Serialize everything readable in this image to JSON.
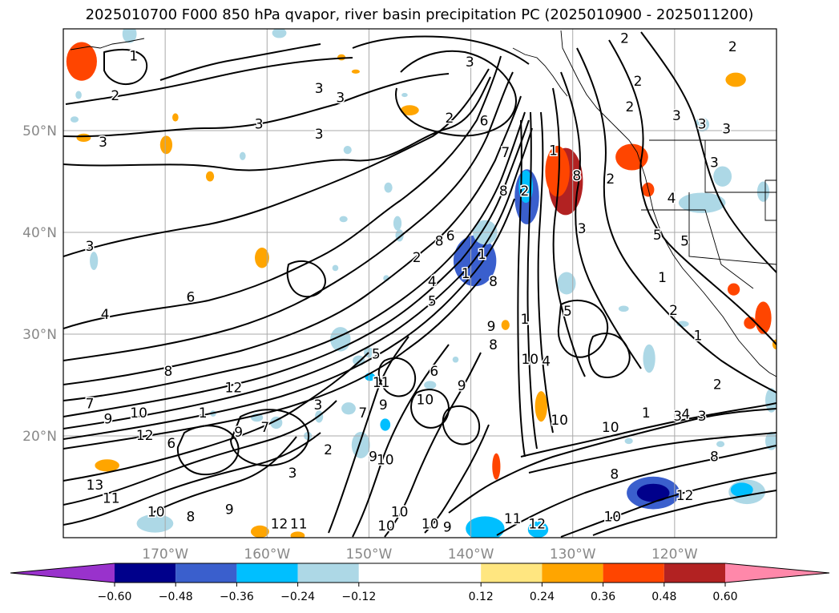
{
  "title": "2025010700 F000 850 hPa qvapor, river basin precipitation PC (2025010900 - 2025011200)",
  "chart_data": {
    "type": "heatmap",
    "title": "2025010700 F000 850 hPa qvapor, river basin precipitation PC (2025010900 - 2025011200)",
    "xlabel": "",
    "ylabel": "",
    "xlim": [
      -180,
      -110
    ],
    "ylim": [
      10,
      60
    ],
    "grid": true,
    "x_ticks": [
      {
        "value": -170,
        "label": "170°W"
      },
      {
        "value": -160,
        "label": "160°W"
      },
      {
        "value": -150,
        "label": "150°W"
      },
      {
        "value": -140,
        "label": "140°W"
      },
      {
        "value": -130,
        "label": "130°W"
      },
      {
        "value": -120,
        "label": "120°W"
      }
    ],
    "y_ticks": [
      {
        "value": 20,
        "label": "20°N"
      },
      {
        "value": 30,
        "label": "30°N"
      },
      {
        "value": 40,
        "label": "40°N"
      },
      {
        "value": 50,
        "label": "50°N"
      }
    ],
    "colorbar": {
      "orientation": "horizontal",
      "extend": "both",
      "bounds": [
        -0.72,
        -0.6,
        -0.48,
        -0.36,
        -0.24,
        -0.12,
        0.12,
        0.24,
        0.36,
        0.48,
        0.6,
        0.72
      ],
      "tick_labels": [
        "−0.60",
        "−0.48",
        "−0.36",
        "−0.24",
        "−0.12",
        "0.12",
        "0.24",
        "0.36",
        "0.48",
        "0.60"
      ],
      "colors": [
        "#9932cc",
        "#00008b",
        "#3a5fcd",
        "#00bfff",
        "#add8e6",
        "#ffffff",
        "#ffe680",
        "#ffa500",
        "#ff4500",
        "#b22222",
        "#ff88aa"
      ]
    },
    "contour_labels": [
      {
        "lon": -173.1,
        "lat": 57.3,
        "text": "1"
      },
      {
        "lon": -174.9,
        "lat": 53.4,
        "text": "2"
      },
      {
        "lon": -176.1,
        "lat": 48.8,
        "text": "3"
      },
      {
        "lon": -160.8,
        "lat": 50.6,
        "text": "3"
      },
      {
        "lon": -154.9,
        "lat": 54.1,
        "text": "3"
      },
      {
        "lon": -152.8,
        "lat": 53.2,
        "text": "3"
      },
      {
        "lon": -154.9,
        "lat": 49.6,
        "text": "3"
      },
      {
        "lon": -177.4,
        "lat": 38.6,
        "text": "3"
      },
      {
        "lon": -140.1,
        "lat": 56.7,
        "text": "3"
      },
      {
        "lon": -142.1,
        "lat": 51.2,
        "text": "2"
      },
      {
        "lon": -138.7,
        "lat": 50.9,
        "text": "6"
      },
      {
        "lon": -136.6,
        "lat": 47.8,
        "text": "7"
      },
      {
        "lon": -136.8,
        "lat": 44.0,
        "text": "8"
      },
      {
        "lon": -134.7,
        "lat": 44.0,
        "text": "2"
      },
      {
        "lon": -131.9,
        "lat": 48.0,
        "text": "1"
      },
      {
        "lon": -129.6,
        "lat": 45.5,
        "text": "8"
      },
      {
        "lon": -124.4,
        "lat": 52.3,
        "text": "2"
      },
      {
        "lon": -124.9,
        "lat": 59.0,
        "text": "2"
      },
      {
        "lon": -123.6,
        "lat": 54.8,
        "text": "2"
      },
      {
        "lon": -114.3,
        "lat": 58.2,
        "text": "2"
      },
      {
        "lon": -119.8,
        "lat": 51.4,
        "text": "3"
      },
      {
        "lon": -117.3,
        "lat": 50.6,
        "text": "3"
      },
      {
        "lon": -114.9,
        "lat": 50.1,
        "text": "3"
      },
      {
        "lon": -116.1,
        "lat": 46.8,
        "text": "3"
      },
      {
        "lon": -126.3,
        "lat": 45.2,
        "text": "2"
      },
      {
        "lon": -120.3,
        "lat": 43.3,
        "text": "4"
      },
      {
        "lon": -121.7,
        "lat": 39.7,
        "text": "5"
      },
      {
        "lon": -119.0,
        "lat": 39.1,
        "text": "5"
      },
      {
        "lon": -121.2,
        "lat": 35.5,
        "text": "1"
      },
      {
        "lon": -120.1,
        "lat": 32.3,
        "text": "2"
      },
      {
        "lon": -117.7,
        "lat": 29.8,
        "text": "1"
      },
      {
        "lon": -115.8,
        "lat": 25.0,
        "text": "2"
      },
      {
        "lon": -119.7,
        "lat": 21.9,
        "text": "3"
      },
      {
        "lon": -117.3,
        "lat": 21.9,
        "text": "3"
      },
      {
        "lon": -118.9,
        "lat": 22.1,
        "text": "4"
      },
      {
        "lon": -122.8,
        "lat": 22.2,
        "text": "1"
      },
      {
        "lon": -126.3,
        "lat": 20.8,
        "text": "10"
      },
      {
        "lon": -125.9,
        "lat": 16.2,
        "text": "8"
      },
      {
        "lon": -116.1,
        "lat": 17.9,
        "text": "8"
      },
      {
        "lon": -119.0,
        "lat": 14.1,
        "text": "12"
      },
      {
        "lon": -126.1,
        "lat": 12.0,
        "text": "10"
      },
      {
        "lon": -129.1,
        "lat": 40.3,
        "text": "3"
      },
      {
        "lon": -138.9,
        "lat": 37.8,
        "text": "1"
      },
      {
        "lon": -137.8,
        "lat": 35.1,
        "text": "8"
      },
      {
        "lon": -138.0,
        "lat": 30.7,
        "text": "9"
      },
      {
        "lon": -137.8,
        "lat": 28.9,
        "text": "8"
      },
      {
        "lon": -134.7,
        "lat": 31.4,
        "text": "1"
      },
      {
        "lon": -130.5,
        "lat": 32.2,
        "text": "5"
      },
      {
        "lon": -132.6,
        "lat": 27.3,
        "text": "4"
      },
      {
        "lon": -131.3,
        "lat": 21.5,
        "text": "10"
      },
      {
        "lon": -143.8,
        "lat": 35.1,
        "text": "4"
      },
      {
        "lon": -143.8,
        "lat": 33.2,
        "text": "5"
      },
      {
        "lon": -145.3,
        "lat": 37.5,
        "text": "2"
      },
      {
        "lon": -143.1,
        "lat": 39.1,
        "text": "8"
      },
      {
        "lon": -142.0,
        "lat": 39.6,
        "text": "6"
      },
      {
        "lon": -140.5,
        "lat": 35.9,
        "text": "1"
      },
      {
        "lon": -167.5,
        "lat": 33.6,
        "text": "6"
      },
      {
        "lon": -175.9,
        "lat": 31.9,
        "text": "4"
      },
      {
        "lon": -169.7,
        "lat": 26.3,
        "text": "8"
      },
      {
        "lon": -163.3,
        "lat": 24.7,
        "text": "12"
      },
      {
        "lon": -177.4,
        "lat": 23.1,
        "text": "7"
      },
      {
        "lon": -175.6,
        "lat": 21.6,
        "text": "9"
      },
      {
        "lon": -172.6,
        "lat": 22.2,
        "text": "10"
      },
      {
        "lon": -175.3,
        "lat": 13.8,
        "text": "11"
      },
      {
        "lon": -176.9,
        "lat": 15.1,
        "text": "13"
      },
      {
        "lon": -172.0,
        "lat": 20.0,
        "text": "12"
      },
      {
        "lon": -169.4,
        "lat": 19.2,
        "text": "6"
      },
      {
        "lon": -166.3,
        "lat": 22.2,
        "text": "1"
      },
      {
        "lon": -162.8,
        "lat": 20.3,
        "text": "9"
      },
      {
        "lon": -160.2,
        "lat": 20.8,
        "text": "7"
      },
      {
        "lon": -170.9,
        "lat": 12.5,
        "text": "10"
      },
      {
        "lon": -163.7,
        "lat": 12.7,
        "text": "9"
      },
      {
        "lon": -167.5,
        "lat": 12.0,
        "text": "8"
      },
      {
        "lon": -157.5,
        "lat": 16.3,
        "text": "3"
      },
      {
        "lon": -154.0,
        "lat": 18.6,
        "text": "2"
      },
      {
        "lon": -155.0,
        "lat": 23.0,
        "text": "3"
      },
      {
        "lon": -150.6,
        "lat": 22.2,
        "text": "7"
      },
      {
        "lon": -148.6,
        "lat": 23.0,
        "text": "9"
      },
      {
        "lon": -148.8,
        "lat": 25.2,
        "text": "11"
      },
      {
        "lon": -149.3,
        "lat": 28.0,
        "text": "5"
      },
      {
        "lon": -148.4,
        "lat": 17.6,
        "text": "10"
      },
      {
        "lon": -149.6,
        "lat": 17.9,
        "text": "9"
      },
      {
        "lon": -147.0,
        "lat": 12.5,
        "text": "10"
      },
      {
        "lon": -148.3,
        "lat": 11.1,
        "text": "10"
      },
      {
        "lon": -158.8,
        "lat": 11.3,
        "text": "12"
      },
      {
        "lon": -156.9,
        "lat": 11.3,
        "text": "11"
      },
      {
        "lon": -144.0,
        "lat": 11.3,
        "text": "10"
      },
      {
        "lon": -142.3,
        "lat": 11.0,
        "text": "9"
      },
      {
        "lon": -144.5,
        "lat": 23.5,
        "text": "10"
      },
      {
        "lon": -140.9,
        "lat": 24.9,
        "text": "9"
      },
      {
        "lon": -143.6,
        "lat": 26.3,
        "text": "6"
      },
      {
        "lon": -135.9,
        "lat": 11.8,
        "text": "11"
      },
      {
        "lon": -133.5,
        "lat": 11.3,
        "text": "12"
      },
      {
        "lon": -134.2,
        "lat": 27.5,
        "text": "10"
      }
    ],
    "precip_pc_blobs": [
      {
        "lon": -178.2,
        "lat": 56.8,
        "rx": 1.5,
        "ry": 1.9,
        "level": 0.36
      },
      {
        "lon": -173.5,
        "lat": 59.5,
        "rx": 0.7,
        "ry": 0.9,
        "level": -0.24
      },
      {
        "lon": -152.7,
        "lat": 57.2,
        "rx": 0.4,
        "ry": 0.3,
        "level": 0.24
      },
      {
        "lon": -158.8,
        "lat": 59.6,
        "rx": 0.7,
        "ry": 0.5,
        "level": -0.24
      },
      {
        "lon": -146.0,
        "lat": 52.0,
        "rx": 0.9,
        "ry": 0.5,
        "level": 0.24
      },
      {
        "lon": -178.0,
        "lat": 49.3,
        "rx": 0.7,
        "ry": 0.4,
        "level": 0.24
      },
      {
        "lon": -169.9,
        "lat": 48.6,
        "rx": 0.6,
        "ry": 0.9,
        "level": 0.24
      },
      {
        "lon": -165.6,
        "lat": 45.5,
        "rx": 0.4,
        "ry": 0.5,
        "level": 0.24
      },
      {
        "lon": -169.0,
        "lat": 51.3,
        "rx": 0.3,
        "ry": 0.4,
        "level": 0.24
      },
      {
        "lon": -146.5,
        "lat": 53.5,
        "rx": 0.3,
        "ry": 0.2,
        "level": -0.24
      },
      {
        "lon": -151.3,
        "lat": 55.8,
        "rx": 0.4,
        "ry": 0.2,
        "level": 0.24
      },
      {
        "lon": -162.4,
        "lat": 47.5,
        "rx": 0.3,
        "ry": 0.4,
        "level": -0.24
      },
      {
        "lon": -148.1,
        "lat": 44.4,
        "rx": 0.4,
        "ry": 0.5,
        "level": -0.24
      },
      {
        "lon": -152.1,
        "lat": 48.1,
        "rx": 0.4,
        "ry": 0.4,
        "level": -0.24
      },
      {
        "lon": -178.9,
        "lat": 51.1,
        "rx": 0.4,
        "ry": 0.3,
        "level": -0.24
      },
      {
        "lon": -178.5,
        "lat": 53.5,
        "rx": 0.3,
        "ry": 0.4,
        "level": -0.24
      },
      {
        "lon": -130.7,
        "lat": 45.0,
        "rx": 1.7,
        "ry": 3.3,
        "level": 0.48
      },
      {
        "lon": -131.5,
        "lat": 46.0,
        "rx": 1.2,
        "ry": 2.5,
        "level": 0.36
      },
      {
        "lon": -134.5,
        "lat": 43.5,
        "rx": 1.2,
        "ry": 2.7,
        "level": -0.48
      },
      {
        "lon": -134.6,
        "lat": 44.5,
        "rx": 0.7,
        "ry": 1.6,
        "level": -0.36
      },
      {
        "lon": -139.6,
        "lat": 37.2,
        "rx": 2.1,
        "ry": 2.5,
        "level": -0.48
      },
      {
        "lon": -138.6,
        "lat": 40.0,
        "rx": 1.2,
        "ry": 1.2,
        "level": -0.24
      },
      {
        "lon": -124.2,
        "lat": 47.4,
        "rx": 1.6,
        "ry": 1.3,
        "level": 0.36
      },
      {
        "lon": -122.6,
        "lat": 44.2,
        "rx": 0.6,
        "ry": 0.7,
        "level": 0.36
      },
      {
        "lon": -114.0,
        "lat": 55.0,
        "rx": 1.0,
        "ry": 0.7,
        "level": 0.24
      },
      {
        "lon": -117.3,
        "lat": 50.6,
        "rx": 0.7,
        "ry": 0.7,
        "level": -0.24
      },
      {
        "lon": -115.3,
        "lat": 45.5,
        "rx": 0.9,
        "ry": 1.0,
        "level": -0.24
      },
      {
        "lon": -117.3,
        "lat": 42.9,
        "rx": 2.3,
        "ry": 1.0,
        "level": -0.24
      },
      {
        "lon": -111.3,
        "lat": 44.0,
        "rx": 0.6,
        "ry": 1.0,
        "level": -0.24
      },
      {
        "lon": -111.3,
        "lat": 31.6,
        "rx": 0.8,
        "ry": 1.6,
        "level": 0.36
      },
      {
        "lon": -112.6,
        "lat": 31.1,
        "rx": 0.6,
        "ry": 0.6,
        "level": 0.36
      },
      {
        "lon": -114.2,
        "lat": 34.4,
        "rx": 0.6,
        "ry": 0.6,
        "level": 0.36
      },
      {
        "lon": -119.2,
        "lat": 31.0,
        "rx": 0.6,
        "ry": 0.3,
        "level": -0.24
      },
      {
        "lon": -130.6,
        "lat": 35.0,
        "rx": 0.9,
        "ry": 1.1,
        "level": -0.24
      },
      {
        "lon": -125.0,
        "lat": 32.5,
        "rx": 0.5,
        "ry": 0.3,
        "level": -0.24
      },
      {
        "lon": -122.5,
        "lat": 27.6,
        "rx": 0.6,
        "ry": 1.4,
        "level": -0.24
      },
      {
        "lon": -137.5,
        "lat": 17.0,
        "rx": 0.4,
        "ry": 1.3,
        "level": 0.36
      },
      {
        "lon": -133.1,
        "lat": 22.9,
        "rx": 0.6,
        "ry": 1.5,
        "level": 0.24
      },
      {
        "lon": -136.6,
        "lat": 30.9,
        "rx": 0.4,
        "ry": 0.5,
        "level": 0.24
      },
      {
        "lon": -144.0,
        "lat": 25.0,
        "rx": 0.6,
        "ry": 0.4,
        "level": -0.24
      },
      {
        "lon": -141.5,
        "lat": 27.5,
        "rx": 0.3,
        "ry": 0.3,
        "level": -0.24
      },
      {
        "lon": -148.4,
        "lat": 21.1,
        "rx": 0.5,
        "ry": 0.6,
        "level": -0.36
      },
      {
        "lon": -150.8,
        "lat": 19.1,
        "rx": 0.9,
        "ry": 1.3,
        "level": -0.24
      },
      {
        "lon": -152.0,
        "lat": 22.7,
        "rx": 0.7,
        "ry": 0.6,
        "level": -0.24
      },
      {
        "lon": -152.8,
        "lat": 29.5,
        "rx": 1.0,
        "ry": 1.2,
        "level": -0.24
      },
      {
        "lon": -150.0,
        "lat": 28.2,
        "rx": 0.5,
        "ry": 0.5,
        "level": -0.24
      },
      {
        "lon": -149.9,
        "lat": 25.8,
        "rx": 0.5,
        "ry": 0.4,
        "level": -0.36
      },
      {
        "lon": -151.0,
        "lat": 27.4,
        "rx": 0.6,
        "ry": 0.5,
        "level": -0.24
      },
      {
        "lon": -154.9,
        "lat": 21.9,
        "rx": 0.4,
        "ry": 0.6,
        "level": -0.24
      },
      {
        "lon": -159.1,
        "lat": 21.3,
        "rx": 0.6,
        "ry": 0.6,
        "level": -0.24
      },
      {
        "lon": -161.0,
        "lat": 21.8,
        "rx": 0.6,
        "ry": 0.4,
        "level": -0.24
      },
      {
        "lon": -165.3,
        "lat": 22.2,
        "rx": 0.3,
        "ry": 0.3,
        "level": -0.24
      },
      {
        "lon": -156.0,
        "lat": 20.0,
        "rx": 0.4,
        "ry": 0.4,
        "level": -0.24
      },
      {
        "lon": -147.2,
        "lat": 40.9,
        "rx": 0.4,
        "ry": 0.7,
        "level": -0.24
      },
      {
        "lon": -177.0,
        "lat": 37.2,
        "rx": 0.4,
        "ry": 0.9,
        "level": -0.24
      },
      {
        "lon": -160.5,
        "lat": 37.5,
        "rx": 0.7,
        "ry": 1.0,
        "level": 0.24
      },
      {
        "lon": -147.0,
        "lat": 39.7,
        "rx": 0.4,
        "ry": 0.6,
        "level": -0.24
      },
      {
        "lon": -148.3,
        "lat": 35.5,
        "rx": 0.3,
        "ry": 0.3,
        "level": -0.24
      },
      {
        "lon": -153.3,
        "lat": 36.5,
        "rx": 0.3,
        "ry": 0.3,
        "level": -0.24
      },
      {
        "lon": -152.5,
        "lat": 41.3,
        "rx": 0.4,
        "ry": 0.3,
        "level": -0.24
      },
      {
        "lon": -175.7,
        "lat": 17.1,
        "rx": 1.2,
        "ry": 0.6,
        "level": 0.24
      },
      {
        "lon": -171.0,
        "lat": 11.4,
        "rx": 1.8,
        "ry": 0.9,
        "level": -0.24
      },
      {
        "lon": -160.7,
        "lat": 10.6,
        "rx": 0.9,
        "ry": 0.6,
        "level": 0.24
      },
      {
        "lon": -138.6,
        "lat": 10.9,
        "rx": 1.9,
        "ry": 1.2,
        "level": -0.36
      },
      {
        "lon": -133.4,
        "lat": 10.8,
        "rx": 1.0,
        "ry": 0.8,
        "level": -0.36
      },
      {
        "lon": -122.1,
        "lat": 14.4,
        "rx": 2.6,
        "ry": 1.6,
        "level": -0.48
      },
      {
        "lon": -122.1,
        "lat": 14.4,
        "rx": 1.6,
        "ry": 0.9,
        "level": -0.6
      },
      {
        "lon": -112.9,
        "lat": 14.5,
        "rx": 1.8,
        "ry": 1.2,
        "level": -0.24
      },
      {
        "lon": -113.4,
        "lat": 14.7,
        "rx": 1.1,
        "ry": 0.7,
        "level": -0.36
      },
      {
        "lon": -110.5,
        "lat": 23.5,
        "rx": 0.6,
        "ry": 1.2,
        "level": -0.24
      },
      {
        "lon": -110.5,
        "lat": 19.5,
        "rx": 0.6,
        "ry": 0.9,
        "level": -0.24
      },
      {
        "lon": -115.5,
        "lat": 19.2,
        "rx": 0.4,
        "ry": 0.3,
        "level": -0.24
      },
      {
        "lon": -124.5,
        "lat": 19.5,
        "rx": 0.4,
        "ry": 0.3,
        "level": -0.24
      },
      {
        "lon": -110.0,
        "lat": 29.0,
        "rx": 0.4,
        "ry": 0.5,
        "level": 0.24
      },
      {
        "lon": -157.0,
        "lat": 10.2,
        "rx": 0.7,
        "ry": 0.4,
        "level": 0.24
      }
    ]
  }
}
